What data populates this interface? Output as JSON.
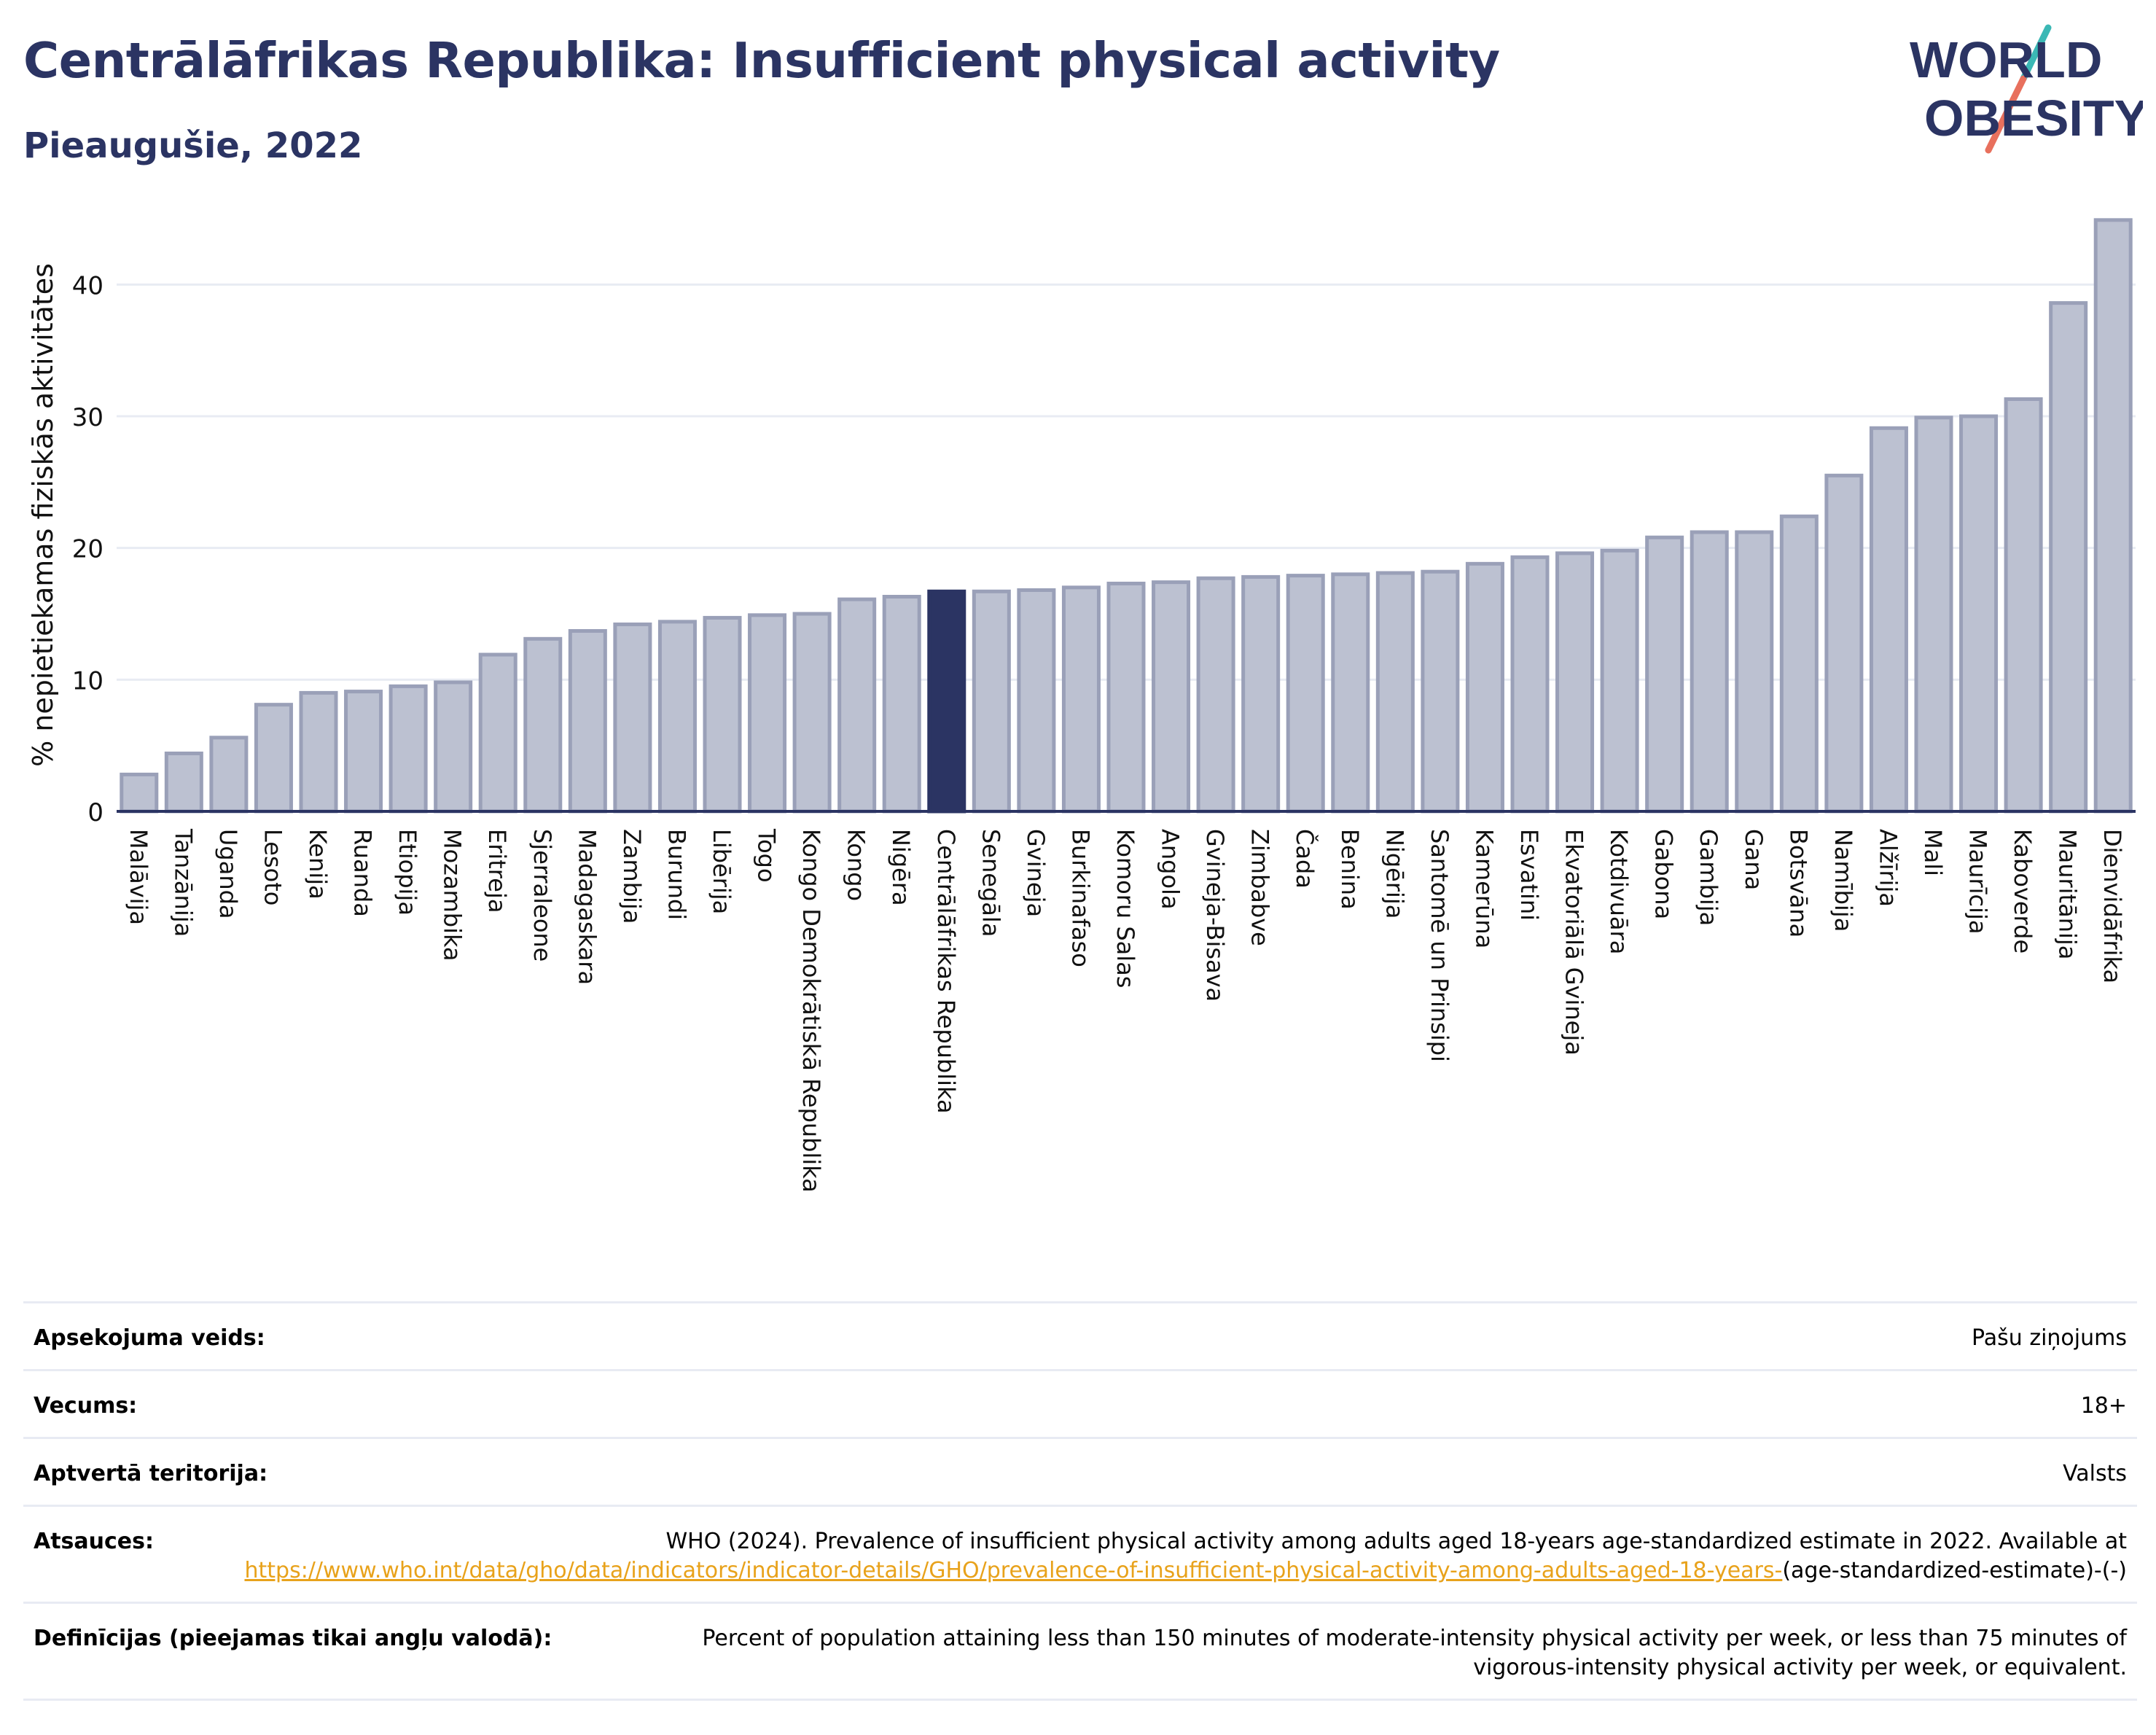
{
  "header": {
    "title": "Centrālāfrikas Republika: Insufficient physical activity",
    "subtitle": "Pieaugušie, 2022"
  },
  "logo": {
    "line1": "WORLD",
    "line2": "OBESITY"
  },
  "chart_data": {
    "type": "bar",
    "title": "Centrālāfrikas Republika: Insufficient physical activity",
    "subtitle": "Pieaugušie, 2022",
    "ylabel": "% nepietiekamas fiziskās aktivitātes",
    "xlabel": "",
    "ylim": [
      0,
      45
    ],
    "yticks": [
      0,
      10,
      20,
      30,
      40
    ],
    "grid": true,
    "highlight": "Centrālāfrikas Republika",
    "colors": {
      "bar": "#bcc1d1",
      "bar_edge": "#9aa0b8",
      "highlight": "#2b3463"
    },
    "categories": [
      "Malāvija",
      "Tanzānija",
      "Uganda",
      "Lesoto",
      "Kenija",
      "Ruanda",
      "Etiopija",
      "Mozambika",
      "Eritreja",
      "Sjerraleone",
      "Madagaskara",
      "Zambija",
      "Burundi",
      "Libērija",
      "Togo",
      "Kongo Demokrātiskā Republika",
      "Kongo",
      "Nigēra",
      "Centrālāfrikas Republika",
      "Senegāla",
      "Gvineja",
      "Burkinafaso",
      "Komoru Salas",
      "Angola",
      "Gvineja-Bisava",
      "Zimbabve",
      "Čada",
      "Benina",
      "Nigērija",
      "Santomē un Prinsipi",
      "Kamerūna",
      "Esvatini",
      "Ekvatoriālā Gvineja",
      "Kotdivuāra",
      "Gabona",
      "Gambija",
      "Gana",
      "Botsvāna",
      "Namībija",
      "Alžīrija",
      "Mali",
      "Maurīcija",
      "Kaboverde",
      "Mauritānija",
      "Dienvidāfrika"
    ],
    "values": [
      2.8,
      4.4,
      5.6,
      8.1,
      9.0,
      9.1,
      9.5,
      9.8,
      11.9,
      13.1,
      13.7,
      14.2,
      14.4,
      14.7,
      14.9,
      15.0,
      16.1,
      16.3,
      16.7,
      16.7,
      16.8,
      17.0,
      17.3,
      17.4,
      17.7,
      17.8,
      17.9,
      18.0,
      18.1,
      18.2,
      18.8,
      19.3,
      19.6,
      19.8,
      20.8,
      21.2,
      21.2,
      22.4,
      25.5,
      29.1,
      29.9,
      30.0,
      31.3,
      38.6,
      44.9
    ]
  },
  "meta": {
    "rows": [
      {
        "label": "Apsekojuma veids:",
        "value": "Pašu ziņojums"
      },
      {
        "label": "Vecums:",
        "value": "18+"
      },
      {
        "label": "Aptvertā teritorija:",
        "value": "Valsts"
      },
      {
        "label": "Atsauces:",
        "value": "WHO (2024). Prevalence of insufficient physical activity among adults aged 18-years age-standardized estimate in 2022. Available at",
        "link": "https://www.who.int/data/gho/data/indicators/indicator-details/GHO/prevalence-of-insufficient-physical-activity-among-adults-aged-18-years-",
        "suffix": "(age-standardized-estimate)-(-)"
      },
      {
        "label": "Definīcijas (pieejamas tikai angļu valodā):",
        "value": "Percent of population attaining less than 150 minutes of moderate-intensity physical activity per week, or less than 75 minutes of vigorous-intensity physical activity per week, or equivalent."
      }
    ]
  }
}
